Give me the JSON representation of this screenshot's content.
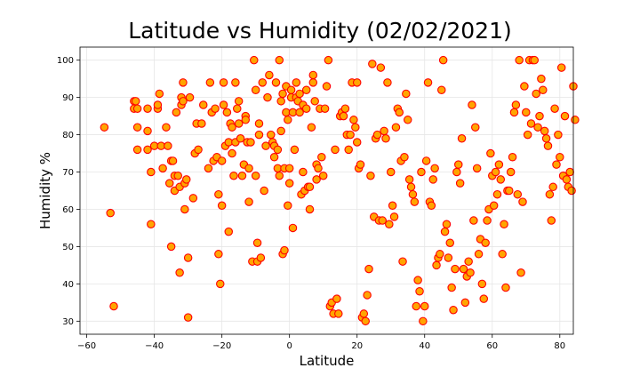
{
  "chart_data": {
    "type": "scatter",
    "title": "Latitude vs Humidity (02/02/2021)",
    "xlabel": "Latitude",
    "ylabel": "Humidity %",
    "xlim": [
      -62,
      84
    ],
    "ylim": [
      26.5,
      103.5
    ],
    "xticks": [
      -60,
      -40,
      -20,
      0,
      20,
      40,
      60,
      80
    ],
    "yticks": [
      30,
      40,
      50,
      60,
      70,
      80,
      90,
      100
    ],
    "grid": true,
    "marker_fill": "#ffa500",
    "marker_edge": "#ff0000",
    "series": [
      {
        "points": [
          [
            -54.8,
            82
          ],
          [
            -53,
            59
          ],
          [
            -52,
            34
          ],
          [
            -46,
            87
          ],
          [
            -46,
            89
          ],
          [
            -45.5,
            89
          ],
          [
            -45,
            87
          ],
          [
            -45,
            82
          ],
          [
            -45,
            76
          ],
          [
            -42,
            87
          ],
          [
            -42,
            81
          ],
          [
            -42,
            76
          ],
          [
            -41,
            70
          ],
          [
            -41,
            56
          ],
          [
            -40,
            77
          ],
          [
            -39,
            87
          ],
          [
            -39,
            88
          ],
          [
            -38.5,
            91
          ],
          [
            -38,
            77
          ],
          [
            -37.5,
            71
          ],
          [
            -36.5,
            82
          ],
          [
            -36,
            77
          ],
          [
            -35.5,
            67
          ],
          [
            -35,
            73
          ],
          [
            -35,
            50
          ],
          [
            -34.5,
            73
          ],
          [
            -34,
            69
          ],
          [
            -34,
            65
          ],
          [
            -33.5,
            86
          ],
          [
            -33,
            69
          ],
          [
            -32.5,
            66
          ],
          [
            -32.5,
            43
          ],
          [
            -32,
            90
          ],
          [
            -32,
            88
          ],
          [
            -31.5,
            89
          ],
          [
            -31.5,
            94
          ],
          [
            -31,
            60
          ],
          [
            -31,
            67
          ],
          [
            -30.5,
            68
          ],
          [
            -30,
            47
          ],
          [
            -30,
            31
          ],
          [
            -29.5,
            90
          ],
          [
            -28.5,
            63
          ],
          [
            -28,
            75
          ],
          [
            -27.5,
            83
          ],
          [
            -27,
            76
          ],
          [
            -26,
            83
          ],
          [
            -25.5,
            88
          ],
          [
            -24,
            71
          ],
          [
            -23.5,
            94
          ],
          [
            -23,
            86
          ],
          [
            -22.5,
            73
          ],
          [
            -22,
            87
          ],
          [
            -21.5,
            74
          ],
          [
            -21,
            48
          ],
          [
            -21,
            64
          ],
          [
            -20.5,
            40
          ],
          [
            -20,
            61
          ],
          [
            -20,
            73
          ],
          [
            -19.5,
            88
          ],
          [
            -19.5,
            94
          ],
          [
            -19,
            77
          ],
          [
            -18.5,
            86
          ],
          [
            -18,
            54
          ],
          [
            -18,
            78
          ],
          [
            -17.5,
            83
          ],
          [
            -17,
            82
          ],
          [
            -17,
            75
          ],
          [
            -16.5,
            69
          ],
          [
            -16,
            78
          ],
          [
            -16,
            94
          ],
          [
            -15.5,
            87
          ],
          [
            -15,
            83
          ],
          [
            -15,
            89
          ],
          [
            -14.5,
            79
          ],
          [
            -14,
            69
          ],
          [
            -13.5,
            72
          ],
          [
            -13,
            85
          ],
          [
            -13,
            84
          ],
          [
            -12.5,
            78
          ],
          [
            -12,
            71
          ],
          [
            -12,
            62
          ],
          [
            -11.5,
            78
          ],
          [
            -11,
            46
          ],
          [
            -10.5,
            100
          ],
          [
            -10,
            69
          ],
          [
            -10,
            92
          ],
          [
            -9.5,
            46
          ],
          [
            -9.5,
            51
          ],
          [
            -9,
            83
          ],
          [
            -9,
            80
          ],
          [
            -8.5,
            47
          ],
          [
            -8,
            94
          ],
          [
            -7.5,
            65
          ],
          [
            -7,
            77
          ],
          [
            -6.5,
            90
          ],
          [
            -6,
            96
          ],
          [
            -5.5,
            80
          ],
          [
            -5,
            78
          ],
          [
            -4.5,
            77
          ],
          [
            -4.5,
            74
          ],
          [
            -4,
            94
          ],
          [
            -3.5,
            76
          ],
          [
            -3.5,
            71
          ],
          [
            -3,
            100
          ],
          [
            -3,
            69
          ],
          [
            -2.5,
            89
          ],
          [
            -2.5,
            81
          ],
          [
            -2,
            91
          ],
          [
            -2,
            48
          ],
          [
            -1.5,
            71
          ],
          [
            -1.5,
            49
          ],
          [
            -1,
            86
          ],
          [
            -1,
            93
          ],
          [
            -0.5,
            84
          ],
          [
            -0.5,
            61
          ],
          [
            0,
            67
          ],
          [
            0,
            71
          ],
          [
            0.5,
            92
          ],
          [
            0.5,
            90
          ],
          [
            1,
            86
          ],
          [
            1,
            55
          ],
          [
            1.5,
            76
          ],
          [
            2,
            94
          ],
          [
            2,
            90
          ],
          [
            2.5,
            89
          ],
          [
            3,
            91
          ],
          [
            3,
            86
          ],
          [
            3.5,
            64
          ],
          [
            4,
            70
          ],
          [
            4,
            88
          ],
          [
            4.5,
            65
          ],
          [
            5,
            87
          ],
          [
            5,
            92
          ],
          [
            5.5,
            66
          ],
          [
            6,
            66
          ],
          [
            6,
            60
          ],
          [
            6.5,
            82
          ],
          [
            7,
            96
          ],
          [
            7,
            94
          ],
          [
            7.5,
            89
          ],
          [
            8,
            72
          ],
          [
            8,
            68
          ],
          [
            8.5,
            71
          ],
          [
            9,
            87
          ],
          [
            9.5,
            74
          ],
          [
            10,
            69
          ],
          [
            10.5,
            87
          ],
          [
            11,
            93
          ],
          [
            11.5,
            100
          ],
          [
            12,
            34
          ],
          [
            12.5,
            35
          ],
          [
            13,
            32
          ],
          [
            13.5,
            76
          ],
          [
            14,
            36
          ],
          [
            14.5,
            32
          ],
          [
            15,
            85
          ],
          [
            15.5,
            86
          ],
          [
            16,
            85
          ],
          [
            16.5,
            87
          ],
          [
            17,
            80
          ],
          [
            17.5,
            76
          ],
          [
            18,
            80
          ],
          [
            18.5,
            94
          ],
          [
            19,
            84
          ],
          [
            19.5,
            82
          ],
          [
            20,
            94
          ],
          [
            20,
            78
          ],
          [
            20.5,
            71
          ],
          [
            21,
            72
          ],
          [
            21.5,
            31
          ],
          [
            22,
            32
          ],
          [
            22.5,
            30
          ],
          [
            23,
            37
          ],
          [
            23.5,
            44
          ],
          [
            24,
            69
          ],
          [
            24.5,
            99
          ],
          [
            25,
            58
          ],
          [
            25.5,
            79
          ],
          [
            26,
            80
          ],
          [
            26.5,
            57
          ],
          [
            27,
            98
          ],
          [
            27.5,
            57
          ],
          [
            28,
            81
          ],
          [
            28.5,
            79
          ],
          [
            29,
            94
          ],
          [
            29.5,
            56
          ],
          [
            30,
            70
          ],
          [
            30.5,
            61
          ],
          [
            31,
            58
          ],
          [
            31.5,
            82
          ],
          [
            32,
            87
          ],
          [
            32.5,
            86
          ],
          [
            33,
            73
          ],
          [
            33.5,
            46
          ],
          [
            34,
            74
          ],
          [
            34.5,
            91
          ],
          [
            35,
            84
          ],
          [
            35.5,
            68
          ],
          [
            36,
            66
          ],
          [
            36.5,
            64
          ],
          [
            37,
            62
          ],
          [
            37.5,
            34
          ],
          [
            38,
            41
          ],
          [
            38.5,
            38
          ],
          [
            39,
            70
          ],
          [
            39.5,
            30
          ],
          [
            40,
            34
          ],
          [
            40.5,
            73
          ],
          [
            41,
            94
          ],
          [
            41.5,
            62
          ],
          [
            42,
            61
          ],
          [
            42.5,
            68
          ],
          [
            43,
            71
          ],
          [
            43.5,
            45
          ],
          [
            44,
            47
          ],
          [
            44.5,
            48
          ],
          [
            45,
            92
          ],
          [
            45.5,
            100
          ],
          [
            46,
            54
          ],
          [
            46.5,
            56
          ],
          [
            47,
            47
          ],
          [
            47.5,
            51
          ],
          [
            48,
            39
          ],
          [
            48.5,
            33
          ],
          [
            49,
            44
          ],
          [
            49.5,
            70
          ],
          [
            50,
            72
          ],
          [
            50.5,
            67
          ],
          [
            51,
            79
          ],
          [
            51.5,
            44
          ],
          [
            52,
            35
          ],
          [
            52.5,
            42
          ],
          [
            53,
            46
          ],
          [
            53.5,
            43
          ],
          [
            54,
            88
          ],
          [
            54.5,
            57
          ],
          [
            55,
            82
          ],
          [
            55.5,
            71
          ],
          [
            56,
            48
          ],
          [
            56.5,
            52
          ],
          [
            57,
            40
          ],
          [
            57.5,
            36
          ],
          [
            58,
            51
          ],
          [
            58.5,
            57
          ],
          [
            59,
            60
          ],
          [
            59.5,
            75
          ],
          [
            60,
            69
          ],
          [
            60.5,
            61
          ],
          [
            61,
            70
          ],
          [
            61.5,
            64
          ],
          [
            62,
            72
          ],
          [
            62.5,
            68
          ],
          [
            63,
            48
          ],
          [
            63.5,
            56
          ],
          [
            64,
            39
          ],
          [
            64.5,
            65
          ],
          [
            65,
            65
          ],
          [
            65.5,
            70
          ],
          [
            66,
            74
          ],
          [
            66.5,
            86
          ],
          [
            67,
            88
          ],
          [
            67.5,
            64
          ],
          [
            68,
            100
          ],
          [
            68.5,
            43
          ],
          [
            69,
            62
          ],
          [
            69.5,
            93
          ],
          [
            70,
            86
          ],
          [
            70.5,
            80
          ],
          [
            71,
            100
          ],
          [
            71.5,
            83
          ],
          [
            72,
            100
          ],
          [
            72.5,
            100
          ],
          [
            73,
            91
          ],
          [
            73.5,
            82
          ],
          [
            74,
            85
          ],
          [
            74.5,
            95
          ],
          [
            75,
            92
          ],
          [
            75.5,
            81
          ],
          [
            76,
            79
          ],
          [
            76.5,
            77
          ],
          [
            77,
            64
          ],
          [
            77.5,
            57
          ],
          [
            78,
            66
          ],
          [
            78.5,
            87
          ],
          [
            79,
            72
          ],
          [
            79.5,
            80
          ],
          [
            80,
            74
          ],
          [
            80.5,
            98
          ],
          [
            81,
            69
          ],
          [
            81.5,
            85
          ],
          [
            82,
            68
          ],
          [
            82.5,
            66
          ],
          [
            83,
            70
          ],
          [
            83.5,
            65
          ],
          [
            84,
            93
          ],
          [
            84.5,
            84
          ]
        ]
      }
    ]
  }
}
